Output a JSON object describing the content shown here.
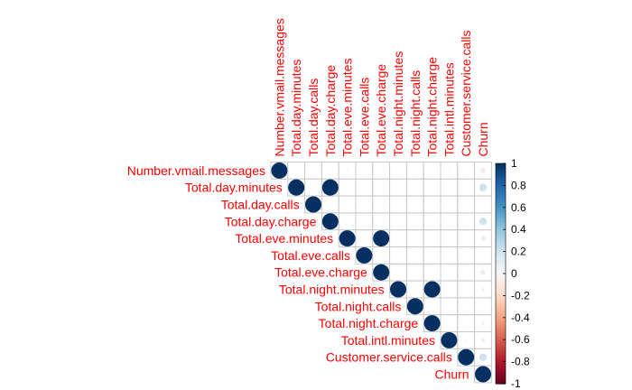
{
  "chart_data": {
    "type": "heatmap",
    "method": "circle",
    "layout": "upper-triangle",
    "variables": [
      "Number.vmail.messages",
      "Total.day.minutes",
      "Total.day.calls",
      "Total.day.charge",
      "Total.eve.minutes",
      "Total.eve.calls",
      "Total.eve.charge",
      "Total.night.minutes",
      "Total.night.calls",
      "Total.night.charge",
      "Total.intl.minutes",
      "Customer.service.calls",
      "Churn"
    ],
    "cells": [
      {
        "row": 0,
        "col": 0,
        "value": 1.0
      },
      {
        "row": 1,
        "col": 1,
        "value": 1.0
      },
      {
        "row": 1,
        "col": 3,
        "value": 1.0
      },
      {
        "row": 2,
        "col": 2,
        "value": 1.0
      },
      {
        "row": 3,
        "col": 3,
        "value": 1.0
      },
      {
        "row": 4,
        "col": 4,
        "value": 1.0
      },
      {
        "row": 4,
        "col": 6,
        "value": 1.0
      },
      {
        "row": 5,
        "col": 5,
        "value": 1.0
      },
      {
        "row": 6,
        "col": 6,
        "value": 1.0
      },
      {
        "row": 7,
        "col": 7,
        "value": 1.0
      },
      {
        "row": 7,
        "col": 9,
        "value": 1.0
      },
      {
        "row": 8,
        "col": 8,
        "value": 1.0
      },
      {
        "row": 9,
        "col": 9,
        "value": 1.0
      },
      {
        "row": 10,
        "col": 10,
        "value": 1.0
      },
      {
        "row": 11,
        "col": 11,
        "value": 1.0
      },
      {
        "row": 12,
        "col": 12,
        "value": 1.0
      },
      {
        "row": 0,
        "col": 12,
        "value": -0.09
      },
      {
        "row": 1,
        "col": 12,
        "value": 0.21
      },
      {
        "row": 3,
        "col": 12,
        "value": 0.21
      },
      {
        "row": 4,
        "col": 12,
        "value": 0.09
      },
      {
        "row": 6,
        "col": 12,
        "value": 0.09
      },
      {
        "row": 7,
        "col": 12,
        "value": 0.04
      },
      {
        "row": 9,
        "col": 12,
        "value": 0.04
      },
      {
        "row": 10,
        "col": 12,
        "value": 0.07
      },
      {
        "row": 11,
        "col": 12,
        "value": 0.21
      },
      {
        "row": 0,
        "col": 4,
        "value": 0.02
      },
      {
        "row": 0,
        "col": 10,
        "value": 0.01
      },
      {
        "row": 10,
        "col": 11,
        "value": -0.01
      }
    ],
    "colorbar": {
      "range": [
        -1,
        1
      ],
      "ticks": [
        "1",
        "0.8",
        "0.6",
        "0.4",
        "0.2",
        "0",
        "-0.2",
        "-0.4",
        "-0.6",
        "-0.8",
        "-1"
      ]
    },
    "colors": {
      "label": "#ff0000",
      "grid": "#c8c8c8",
      "strong_positive": "#053061",
      "strong_negative": "#67001f"
    }
  }
}
